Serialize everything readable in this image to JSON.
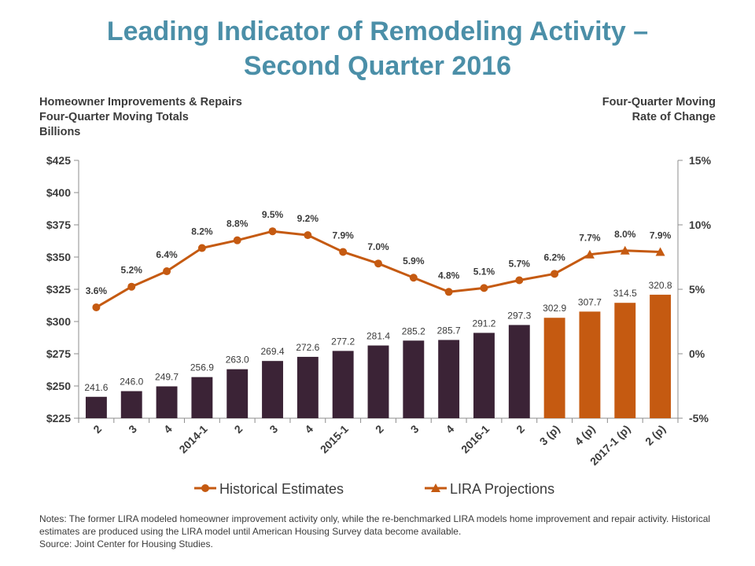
{
  "chart_data": {
    "type": "bar-line",
    "title": "Leading Indicator of Remodeling Activity – Second Quarter 2016",
    "ylabel": [
      "Homeowner Improvements & Repairs",
      "Four-Quarter Moving Totals",
      "Billions"
    ],
    "y2label": [
      "Four-Quarter Moving",
      "Rate of Change"
    ],
    "categories": [
      "2",
      "3",
      "4",
      "2014-1",
      "2",
      "3",
      "4",
      "2015-1",
      "2",
      "3",
      "4",
      "2016-1",
      "2",
      "3 (p)",
      "4 (p)",
      "2017-1 (p)",
      "2 (p)"
    ],
    "bars": {
      "values": [
        241.6,
        246.0,
        249.7,
        256.9,
        263.0,
        269.4,
        272.6,
        277.2,
        281.4,
        285.2,
        285.7,
        291.2,
        297.3,
        302.9,
        307.7,
        314.5,
        320.8
      ],
      "value_labels": [
        "241.6",
        "246.0",
        "249.7",
        "256.9",
        "263.0",
        "269.4",
        "272.6",
        "277.2",
        "281.4",
        "285.2",
        "285.7",
        "291.2",
        "297.3",
        "302.9",
        "307.7",
        "314.5",
        "320.8"
      ],
      "colors": [
        "#3b2336",
        "#3b2336",
        "#3b2336",
        "#3b2336",
        "#3b2336",
        "#3b2336",
        "#3b2336",
        "#3b2336",
        "#3b2336",
        "#3b2336",
        "#3b2336",
        "#3b2336",
        "#3b2336",
        "#c55a11",
        "#c55a11",
        "#c55a11",
        "#c55a11"
      ]
    },
    "series": [
      {
        "name": "Historical Estimates",
        "color": "#c55a11",
        "marker": "circle",
        "axis": "y2",
        "values": [
          3.6,
          5.2,
          6.4,
          8.2,
          8.8,
          9.5,
          9.2,
          7.9,
          7.0,
          5.9,
          4.8,
          5.1,
          5.7,
          6.2,
          null,
          null,
          null
        ],
        "value_labels": [
          "3.6%",
          "5.2%",
          "6.4%",
          "8.2%",
          "8.8%",
          "9.5%",
          "9.2%",
          "7.9%",
          "7.0%",
          "5.9%",
          "4.8%",
          "5.1%",
          "5.7%",
          "6.2%",
          null,
          null,
          null
        ]
      },
      {
        "name": "LIRA Projections",
        "color": "#c55a11",
        "marker": "triangle",
        "axis": "y2",
        "values": [
          null,
          null,
          null,
          null,
          null,
          null,
          null,
          null,
          null,
          null,
          null,
          null,
          null,
          6.2,
          7.7,
          8.0,
          7.9
        ],
        "value_labels": [
          null,
          null,
          null,
          null,
          null,
          null,
          null,
          null,
          null,
          null,
          null,
          null,
          null,
          null,
          "7.7%",
          "8.0%",
          "7.9%"
        ]
      }
    ],
    "ylim": [
      225,
      425
    ],
    "yticks": [
      {
        "value": 225,
        "label": "$225"
      },
      {
        "value": 250,
        "label": "$250"
      },
      {
        "value": 275,
        "label": "$275"
      },
      {
        "value": 300,
        "label": "$300"
      },
      {
        "value": 325,
        "label": "$325"
      },
      {
        "value": 350,
        "label": "$350"
      },
      {
        "value": 375,
        "label": "$375"
      },
      {
        "value": 400,
        "label": "$400"
      },
      {
        "value": 425,
        "label": "$425"
      }
    ],
    "y2lim": [
      -5,
      15
    ],
    "y2ticks": [
      {
        "value": -5,
        "label": "-5%"
      },
      {
        "value": 0,
        "label": "0%"
      },
      {
        "value": 5,
        "label": "5%"
      },
      {
        "value": 10,
        "label": "10%"
      },
      {
        "value": 15,
        "label": "15%"
      }
    ],
    "grid": false,
    "legend": "bottom",
    "notes": "Notes: The former LIRA modeled homeowner improvement  activity only, while the re-benchmarked LIRA models home improvement and repair activity. Historical estimates are produced using the LIRA model until American Housing Survey data become available.",
    "source": "Source: Joint Center for Housing Studies."
  }
}
